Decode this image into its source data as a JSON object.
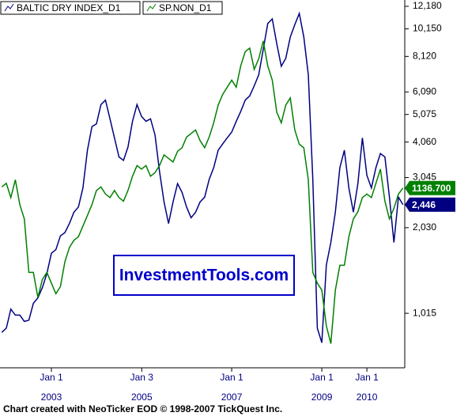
{
  "chart_data": {
    "type": "line",
    "legend": [
      "BALTIC DRY INDEX_D1",
      "SP.NON_D1"
    ],
    "watermark": "InvestmentTools.com",
    "footer": "Chart created with NeoTicker EOD © 1998-2007 TickQuest Inc.",
    "xlim": [
      2001.86,
      2010.84
    ],
    "xticks": [
      {
        "value": 2003.0,
        "label": "Jan 1",
        "year": "2003"
      },
      {
        "value": 2005.005,
        "label": "Jan 3",
        "year": "2005"
      },
      {
        "value": 2007.0,
        "label": "Jan 1",
        "year": "2007"
      },
      {
        "value": 2009.0,
        "label": "Jan 1",
        "year": "2009"
      },
      {
        "value": 2010.0,
        "label": "Jan 1",
        "year": "2010"
      }
    ],
    "ylim": [
      653,
      12820
    ],
    "log_scale": true,
    "yticks": [
      {
        "value": 12180,
        "label": "12,180"
      },
      {
        "value": 10150,
        "label": "10,150"
      },
      {
        "value": 8120,
        "label": "8,120"
      },
      {
        "value": 6090,
        "label": "6,090"
      },
      {
        "value": 5075,
        "label": "5,075"
      },
      {
        "value": 4060,
        "label": "4,060"
      },
      {
        "value": 3045,
        "label": "3,045"
      },
      {
        "value": 2030,
        "label": "2,030"
      },
      {
        "value": 1015,
        "label": "1,015"
      }
    ],
    "y2lim": [
      632,
      1665
    ],
    "x": [
      2001.9,
      2002.0,
      2002.1,
      2002.2,
      2002.3,
      2002.4,
      2002.5,
      2002.6,
      2002.7,
      2002.8,
      2002.9,
      2003.0,
      2003.1,
      2003.2,
      2003.3,
      2003.4,
      2003.5,
      2003.6,
      2003.7,
      2003.8,
      2003.9,
      2004.0,
      2004.1,
      2004.2,
      2004.3,
      2004.4,
      2004.5,
      2004.6,
      2004.7,
      2004.8,
      2004.9,
      2005.0,
      2005.1,
      2005.2,
      2005.3,
      2005.4,
      2005.5,
      2005.6,
      2005.7,
      2005.8,
      2005.9,
      2006.0,
      2006.1,
      2006.2,
      2006.3,
      2006.4,
      2006.5,
      2006.6,
      2006.7,
      2006.8,
      2006.9,
      2007.0,
      2007.1,
      2007.2,
      2007.3,
      2007.4,
      2007.5,
      2007.6,
      2007.7,
      2007.8,
      2007.9,
      2008.0,
      2008.1,
      2008.2,
      2008.3,
      2008.4,
      2008.5,
      2008.6,
      2008.7,
      2008.8,
      2008.9,
      2009.0,
      2009.1,
      2009.2,
      2009.3,
      2009.4,
      2009.5,
      2009.6,
      2009.7,
      2009.8,
      2009.9,
      2010.0,
      2010.1,
      2010.2,
      2010.3,
      2010.4,
      2010.5,
      2010.6,
      2010.7,
      2010.8
    ],
    "series": [
      {
        "name": "BALTIC DRY INDEX_D1",
        "color": "#000080",
        "values": [
          870,
          900,
          1050,
          1000,
          1000,
          950,
          960,
          1100,
          1150,
          1250,
          1400,
          1650,
          1700,
          1900,
          1950,
          2100,
          2300,
          2400,
          2800,
          3800,
          4600,
          4700,
          5500,
          5700,
          4900,
          4200,
          3600,
          3500,
          3900,
          4800,
          5500,
          5000,
          4800,
          4900,
          4300,
          3200,
          2500,
          2100,
          2500,
          2900,
          2700,
          2400,
          2200,
          2300,
          2500,
          2600,
          3000,
          3300,
          3800,
          4000,
          4200,
          4400,
          4800,
          5200,
          5700,
          5900,
          6400,
          7000,
          8600,
          10600,
          11000,
          9000,
          7500,
          8000,
          9500,
          10500,
          11500,
          9500,
          7000,
          3000,
          900,
          800,
          1500,
          1800,
          2300,
          3300,
          3800,
          2800,
          2300,
          2900,
          4200,
          3100,
          2800,
          3300,
          3700,
          3600,
          2600,
          1800,
          2600,
          2446
        ],
        "value_labels": [
          null,
          null,
          null,
          null,
          null,
          null,
          null,
          null,
          null,
          null,
          null,
          null,
          null,
          null,
          null,
          null,
          null,
          null,
          null,
          null,
          null,
          null,
          null,
          null,
          null,
          null,
          null,
          null,
          null,
          null,
          null,
          null,
          null,
          null,
          null,
          null,
          null,
          null,
          null,
          null,
          null,
          null,
          null,
          null,
          null,
          null,
          null,
          null,
          null,
          null,
          null,
          null,
          null,
          null,
          null,
          null,
          null,
          null,
          null,
          null,
          null,
          null,
          null,
          null,
          null,
          null,
          null,
          null,
          null,
          null,
          null,
          null,
          null,
          null,
          null,
          null,
          null,
          null,
          null,
          null,
          null,
          null,
          null,
          null,
          null,
          null,
          null,
          null,
          null,
          "2,446"
        ]
      },
      {
        "name": "SP.NON_D1",
        "color": "#008000",
        "axis": "y2",
        "values": [
          1140,
          1150,
          1110,
          1160,
          1090,
          1050,
          900,
          900,
          830,
          880,
          900,
          870,
          840,
          860,
          930,
          970,
          990,
          1000,
          1030,
          1060,
          1090,
          1130,
          1140,
          1120,
          1110,
          1130,
          1110,
          1100,
          1130,
          1170,
          1200,
          1190,
          1200,
          1170,
          1180,
          1200,
          1230,
          1220,
          1210,
          1240,
          1250,
          1280,
          1290,
          1300,
          1270,
          1250,
          1280,
          1320,
          1370,
          1400,
          1420,
          1440,
          1420,
          1480,
          1520,
          1530,
          1470,
          1500,
          1550,
          1480,
          1440,
          1350,
          1320,
          1370,
          1390,
          1300,
          1260,
          1250,
          1160,
          900,
          870,
          850,
          750,
          700,
          850,
          920,
          920,
          1000,
          1050,
          1070,
          1110,
          1120,
          1110,
          1150,
          1190,
          1100,
          1050,
          1080,
          1120,
          1136.7
        ],
        "value_labels": [
          null,
          null,
          null,
          null,
          null,
          null,
          null,
          null,
          null,
          null,
          null,
          null,
          null,
          null,
          null,
          null,
          null,
          null,
          null,
          null,
          null,
          null,
          null,
          null,
          null,
          null,
          null,
          null,
          null,
          null,
          null,
          null,
          null,
          null,
          null,
          null,
          null,
          null,
          null,
          null,
          null,
          null,
          null,
          null,
          null,
          null,
          null,
          null,
          null,
          null,
          null,
          null,
          null,
          null,
          null,
          null,
          null,
          null,
          null,
          null,
          null,
          null,
          null,
          null,
          null,
          null,
          null,
          null,
          null,
          null,
          null,
          null,
          null,
          null,
          null,
          null,
          null,
          null,
          null,
          null,
          null,
          null,
          null,
          null,
          null,
          null,
          null,
          null,
          null,
          "1136.700"
        ]
      }
    ]
  }
}
